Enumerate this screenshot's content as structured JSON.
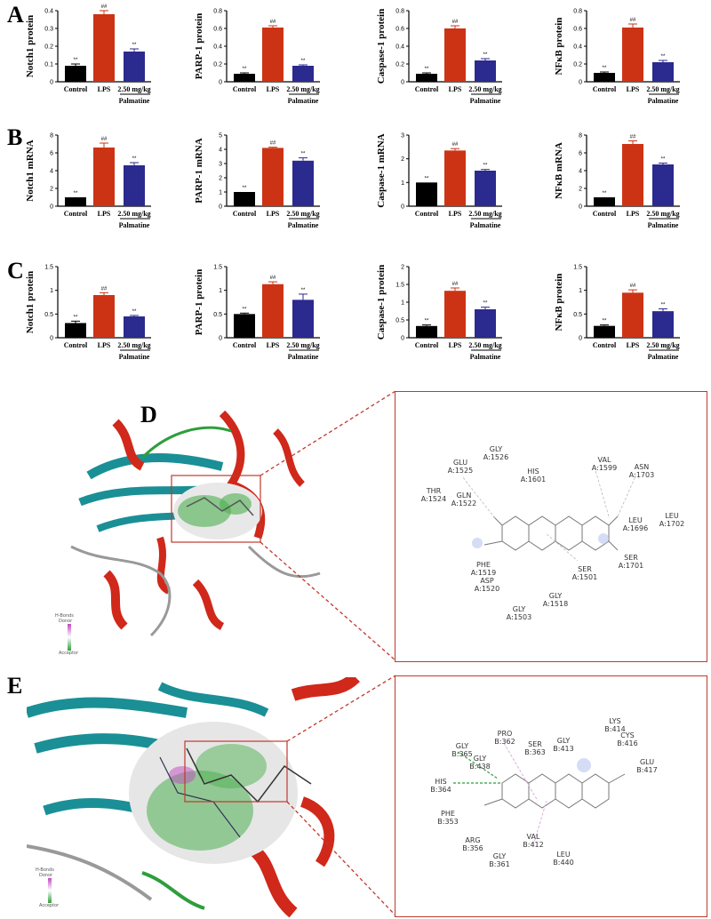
{
  "panel_letters": [
    "A",
    "B",
    "C",
    "D",
    "E"
  ],
  "chart_data": [
    {
      "type": "bar",
      "panel": "A",
      "ylabel": "Notch1 protein",
      "categories": [
        "Control",
        "LPS",
        "2.50 mg/kg"
      ],
      "group_label": "Palmatine",
      "values": [
        0.09,
        0.38,
        0.17
      ],
      "errors": [
        0.01,
        0.02,
        0.015
      ],
      "marks": [
        "**",
        "##",
        "**"
      ],
      "yticks": [
        0.0,
        0.1,
        0.2,
        0.3,
        0.4
      ],
      "ylim": [
        0,
        0.4
      ],
      "colors": [
        "#000000",
        "#cc3315",
        "#2b2a8f"
      ]
    },
    {
      "type": "bar",
      "panel": "A",
      "ylabel": "PARP-1 protein",
      "categories": [
        "Control",
        "LPS",
        "2.50 mg/kg"
      ],
      "group_label": "Palmatine",
      "values": [
        0.09,
        0.61,
        0.18
      ],
      "errors": [
        0.01,
        0.02,
        0.01
      ],
      "marks": [
        "**",
        "##",
        "**"
      ],
      "yticks": [
        0.0,
        0.2,
        0.4,
        0.6,
        0.8
      ],
      "ylim": [
        0,
        0.8
      ],
      "colors": [
        "#000000",
        "#cc3315",
        "#2b2a8f"
      ]
    },
    {
      "type": "bar",
      "panel": "A",
      "ylabel": "Caspase-1 protein",
      "categories": [
        "Control",
        "LPS",
        "2.50 mg/kg"
      ],
      "group_label": "Palmatine",
      "values": [
        0.09,
        0.6,
        0.24
      ],
      "errors": [
        0.01,
        0.03,
        0.02
      ],
      "marks": [
        "**",
        "##",
        "**"
      ],
      "yticks": [
        0.0,
        0.2,
        0.4,
        0.6,
        0.8
      ],
      "ylim": [
        0,
        0.8
      ],
      "colors": [
        "#000000",
        "#cc3315",
        "#2b2a8f"
      ]
    },
    {
      "type": "bar",
      "panel": "A",
      "ylabel": "NFκB protein",
      "categories": [
        "Control",
        "LPS",
        "2.50 mg/kg"
      ],
      "group_label": "Palmatine",
      "values": [
        0.1,
        0.61,
        0.22
      ],
      "errors": [
        0.01,
        0.04,
        0.02
      ],
      "marks": [
        "**",
        "##",
        "**"
      ],
      "yticks": [
        0.0,
        0.2,
        0.4,
        0.6,
        0.8
      ],
      "ylim": [
        0,
        0.8
      ],
      "colors": [
        "#000000",
        "#cc3315",
        "#2b2a8f"
      ]
    },
    {
      "type": "bar",
      "panel": "B",
      "ylabel": "Notch1 mRNA",
      "categories": [
        "Control",
        "LPS",
        "2.50 mg/kg"
      ],
      "group_label": "Palmatine",
      "values": [
        1.0,
        6.6,
        4.6
      ],
      "errors": [
        0.0,
        0.5,
        0.3
      ],
      "marks": [
        "**",
        "##",
        "**"
      ],
      "yticks": [
        0,
        2,
        4,
        6,
        8
      ],
      "ylim": [
        0,
        8
      ],
      "colors": [
        "#000000",
        "#cc3315",
        "#2b2a8f"
      ]
    },
    {
      "type": "bar",
      "panel": "B",
      "ylabel": "PARP-1 mRNA",
      "categories": [
        "Control",
        "LPS",
        "2.50 mg/kg"
      ],
      "group_label": "Palmatine",
      "values": [
        1.0,
        4.1,
        3.2
      ],
      "errors": [
        0.0,
        0.05,
        0.2
      ],
      "marks": [
        "**",
        "##",
        "**"
      ],
      "yticks": [
        0,
        1,
        2,
        3,
        4,
        5
      ],
      "ylim": [
        0,
        5
      ],
      "colors": [
        "#000000",
        "#cc3315",
        "#2b2a8f"
      ]
    },
    {
      "type": "bar",
      "panel": "B",
      "ylabel": "Caspase-1 mRNA",
      "categories": [
        "Control",
        "LPS",
        "2.50 mg/kg"
      ],
      "group_label": "Palmatine",
      "values": [
        1.0,
        2.35,
        1.5
      ],
      "errors": [
        0.0,
        0.08,
        0.05
      ],
      "marks": [
        "**",
        "##",
        "**"
      ],
      "yticks": [
        0,
        1,
        2,
        3
      ],
      "ylim": [
        0,
        3
      ],
      "colors": [
        "#000000",
        "#cc3315",
        "#2b2a8f"
      ]
    },
    {
      "type": "bar",
      "panel": "B",
      "ylabel": "NFκB mRNA",
      "categories": [
        "Control",
        "LPS",
        "2.50 mg/kg"
      ],
      "group_label": "Palmatine",
      "values": [
        1.0,
        7.0,
        4.7
      ],
      "errors": [
        0.0,
        0.35,
        0.15
      ],
      "marks": [
        "**",
        "##",
        "**"
      ],
      "yticks": [
        0,
        2,
        4,
        6,
        8
      ],
      "ylim": [
        0,
        8
      ],
      "colors": [
        "#000000",
        "#cc3315",
        "#2b2a8f"
      ]
    },
    {
      "type": "bar",
      "panel": "C",
      "ylabel": "Notch1 protein",
      "categories": [
        "Control",
        "LPS",
        "2.50 mg/kg"
      ],
      "group_label": "Palmatine",
      "values": [
        0.31,
        0.9,
        0.45
      ],
      "errors": [
        0.04,
        0.05,
        0.02
      ],
      "marks": [
        "**",
        "##",
        "**"
      ],
      "yticks": [
        0.0,
        0.5,
        1.0,
        1.5
      ],
      "ylim": [
        0,
        1.5
      ],
      "colors": [
        "#000000",
        "#cc3315",
        "#2b2a8f"
      ]
    },
    {
      "type": "bar",
      "panel": "C",
      "ylabel": "PARP-1 protein",
      "categories": [
        "Control",
        "LPS",
        "2.50 mg/kg"
      ],
      "group_label": "Palmatine",
      "values": [
        0.5,
        1.13,
        0.8
      ],
      "errors": [
        0.02,
        0.05,
        0.12
      ],
      "marks": [
        "**",
        "##",
        "**"
      ],
      "yticks": [
        0.0,
        0.5,
        1.0,
        1.5
      ],
      "ylim": [
        0,
        1.5
      ],
      "colors": [
        "#000000",
        "#cc3315",
        "#2b2a8f"
      ]
    },
    {
      "type": "bar",
      "panel": "C",
      "ylabel": "Caspase-1 protein",
      "categories": [
        "Control",
        "LPS",
        "2.50 mg/kg"
      ],
      "group_label": "Palmatine",
      "values": [
        0.33,
        1.32,
        0.8
      ],
      "errors": [
        0.03,
        0.08,
        0.06
      ],
      "marks": [
        "**",
        "##",
        "**"
      ],
      "yticks": [
        0.0,
        0.5,
        1.0,
        1.5,
        2.0
      ],
      "ylim": [
        0,
        2.0
      ],
      "colors": [
        "#000000",
        "#cc3315",
        "#2b2a8f"
      ]
    },
    {
      "type": "bar",
      "panel": "C",
      "ylabel": "NFκB protein",
      "categories": [
        "Control",
        "LPS",
        "2.50 mg/kg"
      ],
      "group_label": "Palmatine",
      "values": [
        0.25,
        0.95,
        0.56
      ],
      "errors": [
        0.02,
        0.06,
        0.05
      ],
      "marks": [
        "**",
        "##",
        "**"
      ],
      "yticks": [
        0.0,
        0.5,
        1.0,
        1.5
      ],
      "ylim": [
        0,
        1.5
      ],
      "colors": [
        "#000000",
        "#cc3315",
        "#2b2a8f"
      ]
    }
  ],
  "legend": {
    "title": "H-Bonds",
    "donor": "Donor",
    "acceptor": "Acceptor"
  },
  "residues_d": [
    "GLU A:1525",
    "GLY A:1526",
    "HIS A:1601",
    "VAL A:1599",
    "ASN A:1703",
    "THR A:1524",
    "GLN A:1522",
    "LEU A:1696",
    "LEU A:1702",
    "PHE A:1519",
    "SER A:1701",
    "ASP A:1520",
    "SER A:1501",
    "GLY A:1518",
    "GLY A:1503"
  ],
  "residues_e": [
    "LYS B:414",
    "PRO B:362",
    "GLY B:413",
    "CYS B:416",
    "SER B:363",
    "GLY B:365",
    "GLY B:438",
    "GLU B:417",
    "HIS B:364",
    "PHE B:353",
    "ARG B:356",
    "VAL B:412",
    "GLY B:361",
    "LEU B:440"
  ],
  "colors": {
    "control": "#000000",
    "lps": "#cc3315",
    "palmatine": "#2b2a8f",
    "zoom_line": "#c0392b"
  }
}
